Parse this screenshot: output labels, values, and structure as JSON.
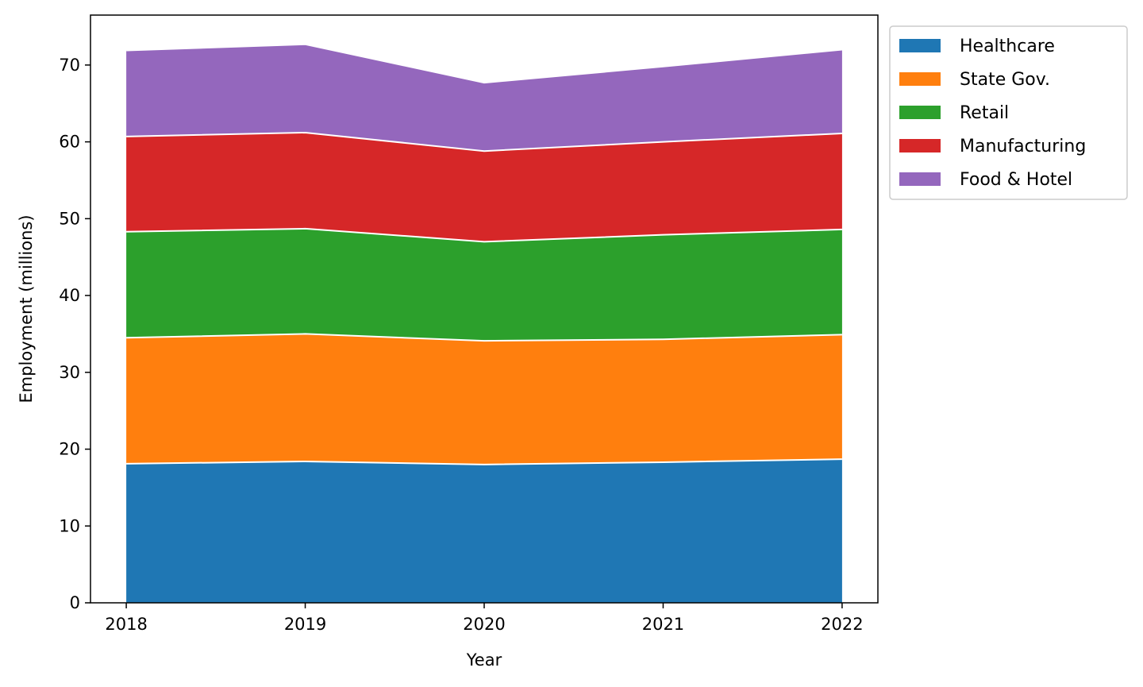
{
  "chart_data": {
    "type": "area",
    "stacked": true,
    "x": [
      2018,
      2019,
      2020,
      2021,
      2022
    ],
    "xlabel": "Year",
    "ylabel": "Employment (millions)",
    "ylim": [
      0,
      76.5
    ],
    "yticks": [
      0,
      10,
      20,
      30,
      40,
      50,
      60,
      70
    ],
    "grid": false,
    "legend_position": "outside-top-right",
    "series": [
      {
        "name": "Healthcare",
        "color": "#1f77b4",
        "values": [
          18.1,
          18.4,
          18.0,
          18.3,
          18.7
        ]
      },
      {
        "name": "State Gov.",
        "color": "#ff7f0e",
        "values": [
          16.4,
          16.6,
          16.1,
          16.0,
          16.2
        ]
      },
      {
        "name": "Retail",
        "color": "#2ca02c",
        "values": [
          13.8,
          13.7,
          12.9,
          13.6,
          13.7
        ]
      },
      {
        "name": "Manufacturing",
        "color": "#d62728",
        "values": [
          12.4,
          12.5,
          11.8,
          12.1,
          12.5
        ]
      },
      {
        "name": "Food & Hotel",
        "color": "#9467bd",
        "values": [
          11.2,
          11.5,
          8.9,
          9.8,
          10.9
        ]
      }
    ]
  }
}
